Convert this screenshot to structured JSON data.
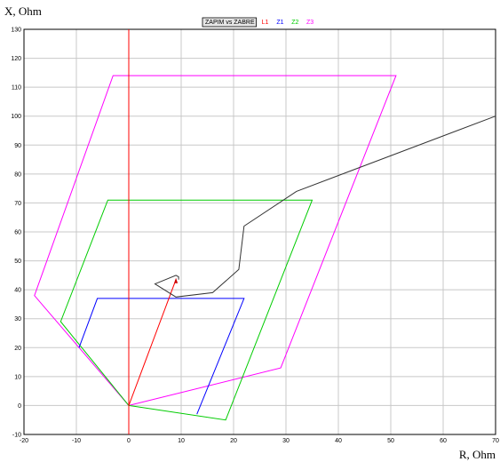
{
  "chart_data": {
    "type": "line",
    "xlabel": "R, Ohm",
    "ylabel": "X, Ohm",
    "xlim": [
      -20,
      70
    ],
    "ylim": [
      -10,
      130
    ],
    "xticks": [
      -20,
      -10,
      0,
      10,
      20,
      30,
      40,
      50,
      60,
      70
    ],
    "yticks": [
      -10,
      0,
      10,
      20,
      30,
      40,
      50,
      60,
      70,
      80,
      90,
      100,
      110,
      120,
      130
    ],
    "grid": true,
    "legend_position": "top-center",
    "legend": [
      {
        "label": "ZAPIM vs ZABRE",
        "color": "#000000",
        "boxed": true
      },
      {
        "label": "L1",
        "color": "#ff0000"
      },
      {
        "label": "Z1",
        "color": "#0000ff"
      },
      {
        "label": "Z2",
        "color": "#00cc00"
      },
      {
        "label": "Z3",
        "color": "#ff00ff"
      }
    ],
    "series": [
      {
        "name": "Z3",
        "color": "#ff00ff",
        "x": [
          0,
          -18,
          -3,
          51,
          29,
          0
        ],
        "y": [
          0,
          38,
          114,
          114,
          13,
          0
        ]
      },
      {
        "name": "Z2",
        "color": "#00cc00",
        "x": [
          0,
          -13,
          -4,
          35,
          18.5,
          0
        ],
        "y": [
          0,
          29,
          71,
          71,
          -5,
          0
        ]
      },
      {
        "name": "Z1",
        "color": "#0000ff",
        "x": [
          13,
          22,
          22,
          -6,
          -9.5
        ],
        "y": [
          -3,
          37,
          37,
          37,
          20
        ]
      },
      {
        "name": "L1",
        "color": "#ff0000",
        "x": [
          0,
          9
        ],
        "y": [
          0,
          43.5
        ]
      },
      {
        "name": "ZAPIM vs ZABRE",
        "color": "#333333",
        "x": [
          70,
          32,
          22,
          21,
          16,
          9,
          5,
          9,
          9.5,
          9.5,
          9.5
        ],
        "y": [
          100,
          74,
          62,
          47,
          39,
          37.5,
          42,
          45,
          44.5,
          44,
          43.5
        ]
      },
      {
        "name": "zero-line",
        "color": "#ff0000",
        "x": [
          0,
          0
        ],
        "y": [
          -10,
          130
        ]
      }
    ]
  }
}
